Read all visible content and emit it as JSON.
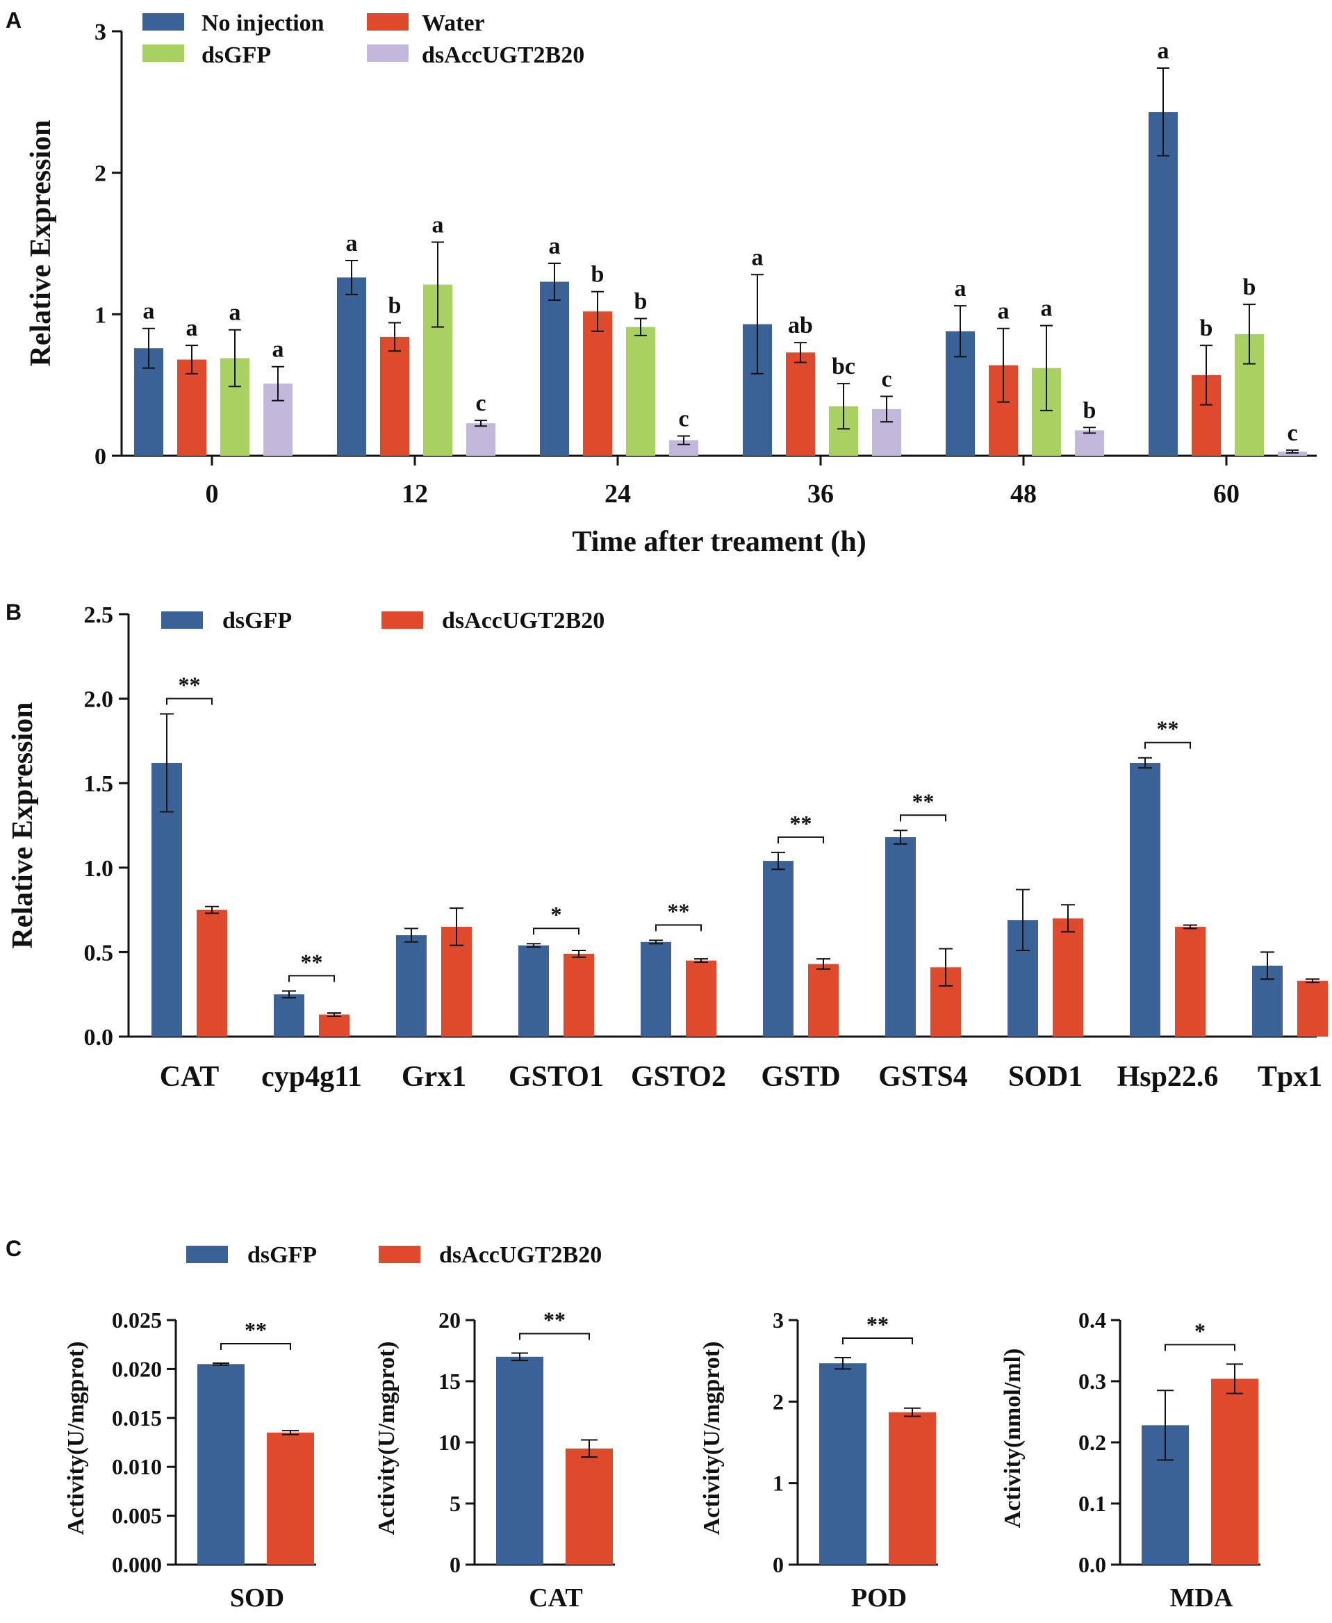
{
  "colors": {
    "no_injection": "#3a6296",
    "water": "#de4b2c",
    "dsgfp_green": "#a9d162",
    "dsacc_purple": "#c4b7dc",
    "dsgfp_blue": "#3a6296",
    "dsacc_red": "#de4b2c"
  },
  "chart_data": [
    {
      "panel": "A",
      "type": "bar",
      "title": "",
      "xlabel": "Time after treament (h)",
      "ylabel": "Relative Expression",
      "ylim": [
        0,
        3
      ],
      "yticks": [
        "0",
        "1",
        "2",
        "3"
      ],
      "categories": [
        "0",
        "12",
        "24",
        "36",
        "48",
        "60"
      ],
      "legend_position": "top-left",
      "series": [
        {
          "name": "No injection",
          "color_key": "no_injection",
          "values": [
            0.76,
            1.26,
            1.23,
            0.93,
            0.88,
            2.43
          ],
          "errors": [
            0.14,
            0.12,
            0.13,
            0.35,
            0.18,
            0.31
          ],
          "letters": [
            "a",
            "a",
            "a",
            "a",
            "a",
            "a"
          ]
        },
        {
          "name": "Water",
          "color_key": "water",
          "values": [
            0.68,
            0.84,
            1.02,
            0.73,
            0.64,
            0.57
          ],
          "errors": [
            0.1,
            0.1,
            0.14,
            0.07,
            0.26,
            0.21
          ],
          "letters": [
            "a",
            "b",
            "b",
            "ab",
            "a",
            "b"
          ]
        },
        {
          "name": "dsGFP",
          "color_key": "dsgfp_green",
          "values": [
            0.69,
            1.21,
            0.91,
            0.35,
            0.62,
            0.86
          ],
          "errors": [
            0.2,
            0.3,
            0.06,
            0.16,
            0.3,
            0.21
          ],
          "letters": [
            "a",
            "a",
            "b",
            "bc",
            "a",
            "b"
          ]
        },
        {
          "name": "dsAccUGT2B20",
          "color_key": "dsacc_purple",
          "values": [
            0.51,
            0.23,
            0.11,
            0.33,
            0.18,
            0.03
          ],
          "errors": [
            0.12,
            0.02,
            0.03,
            0.09,
            0.02,
            0.01
          ],
          "letters": [
            "a",
            "c",
            "c",
            "c",
            "b",
            "c"
          ]
        }
      ]
    },
    {
      "panel": "B",
      "type": "bar",
      "title": "",
      "xlabel": "",
      "ylabel": "Relative Expression",
      "ylim": [
        0,
        2.5
      ],
      "yticks": [
        "0.0",
        "0.5",
        "1.0",
        "1.5",
        "2.0",
        "2.5"
      ],
      "categories": [
        "CAT",
        "cyp4g11",
        "Grx1",
        "GSTO1",
        "GSTO2",
        "GSTD",
        "GSTS4",
        "SOD1",
        "Hsp22.6",
        "Tpx1"
      ],
      "legend_position": "top-left",
      "series": [
        {
          "name": "dsGFP",
          "color_key": "dsgfp_blue",
          "values": [
            1.62,
            0.25,
            0.6,
            0.54,
            0.56,
            1.04,
            1.18,
            0.69,
            1.62,
            0.42
          ],
          "errors": [
            0.29,
            0.02,
            0.04,
            0.01,
            0.01,
            0.05,
            0.04,
            0.18,
            0.03,
            0.08
          ]
        },
        {
          "name": "dsAccUGT2B20",
          "color_key": "dsacc_red",
          "values": [
            0.75,
            0.13,
            0.65,
            0.49,
            0.45,
            0.43,
            0.41,
            0.7,
            0.65,
            0.33
          ]
        }
      ],
      "extra_errors": [
        0.02,
        0.01,
        0.11,
        0.02,
        0.01,
        0.03,
        0.11,
        0.08,
        0.01,
        0.01
      ],
      "significance": [
        "**",
        "**",
        "",
        "*",
        "**",
        "**",
        "**",
        "",
        "**",
        ""
      ]
    },
    {
      "panel": "C",
      "type": "bar",
      "legend_position": "top-left",
      "series_names": [
        "dsGFP",
        "dsAccUGT2B20"
      ],
      "subplots": [
        {
          "xlabel": "SOD",
          "ylabel": "Activity(U/mgprot)",
          "ylim": [
            0,
            0.025
          ],
          "yticks": [
            "0.000",
            "0.005",
            "0.010",
            "0.015",
            "0.020",
            "0.025"
          ],
          "values": [
            0.0205,
            0.0135
          ],
          "errors": [
            0.0001,
            0.0002
          ],
          "significance": "**"
        },
        {
          "xlabel": "CAT",
          "ylabel": "Activity(U/mgprot)",
          "ylim": [
            0,
            20
          ],
          "yticks": [
            "0",
            "5",
            "10",
            "15",
            "20"
          ],
          "values": [
            17.0,
            9.5
          ],
          "errors": [
            0.3,
            0.7
          ],
          "significance": "**"
        },
        {
          "xlabel": "POD",
          "ylabel": "Activity(U/mgprot)",
          "ylim": [
            0,
            3
          ],
          "yticks": [
            "0",
            "1",
            "2",
            "3"
          ],
          "values": [
            2.47,
            1.87
          ],
          "errors": [
            0.07,
            0.05
          ],
          "significance": "**"
        },
        {
          "xlabel": "MDA",
          "ylabel": "Activity(nmol/ml)",
          "ylim": [
            0,
            0.4
          ],
          "yticks": [
            "0.0",
            "0.1",
            "0.2",
            "0.3",
            "0.4"
          ],
          "values": [
            0.228,
            0.304
          ],
          "errors": [
            0.057,
            0.024
          ],
          "significance": "*"
        }
      ]
    }
  ]
}
